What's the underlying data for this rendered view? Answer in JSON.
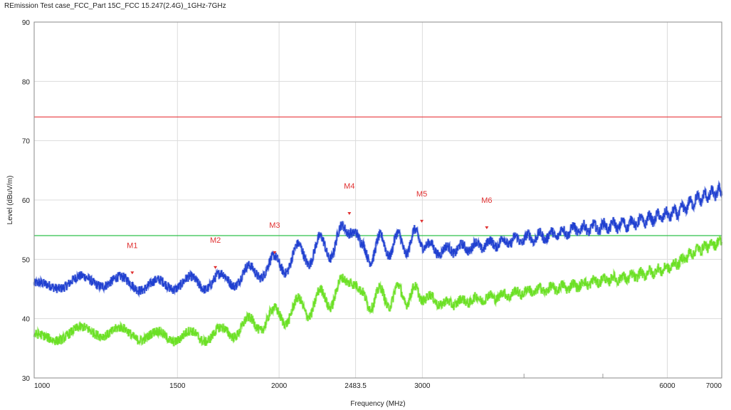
{
  "chart_data": {
    "type": "line",
    "title": "REmission Test case_FCC_Part 15C_FCC 15.247(2.4G)_1GHz-7GHz",
    "xlabel": "Frequency (MHz)",
    "ylabel": "Level (dBuV/m)",
    "xscale": "log",
    "xlim": [
      1000,
      7000
    ],
    "ylim": [
      30,
      90
    ],
    "x_ticks": [
      {
        "value": 1000,
        "label": "1000"
      },
      {
        "value": 1500,
        "label": "1500"
      },
      {
        "value": 2000,
        "label": "2000"
      },
      {
        "value": 2483.5,
        "label": "2483.5"
      },
      {
        "value": 3000,
        "label": "3000"
      },
      {
        "value": 6000,
        "label": "6000"
      },
      {
        "value": 7000,
        "label": "7000"
      }
    ],
    "x_minor_ticks": [
      4000,
      5000
    ],
    "y_ticks": [
      30,
      40,
      50,
      60,
      70,
      80,
      90
    ],
    "grid": true,
    "limit_lines": [
      {
        "value": 74,
        "color": "#e8393d"
      },
      {
        "value": 54,
        "color": "#2fc04a"
      }
    ],
    "series": [
      {
        "color": "#1f3fd0",
        "x": [
          1000,
          1050,
          1100,
          1200,
          1300,
          1400,
          1500,
          1600,
          1700,
          1800,
          1900,
          2000,
          2100,
          2200,
          2300,
          2400,
          2450,
          2483.5,
          2520,
          2600,
          2700,
          2800,
          2900,
          2990,
          3010,
          3100,
          3200,
          3400,
          3600,
          3800,
          4000,
          4300,
          4600,
          5000,
          5400,
          5800,
          6000,
          6200,
          6500,
          6800,
          7000
        ],
        "y": [
          45,
          46,
          46,
          46.5,
          46,
          45.5,
          46,
          46,
          46.5,
          47,
          48.5,
          49,
          50.5,
          51.5,
          52,
          54,
          56,
          55,
          51,
          51.5,
          52.5,
          52.5,
          53,
          53.5,
          53,
          51.5,
          51.5,
          52,
          52.5,
          53,
          53.5,
          54,
          55,
          55.5,
          56,
          57,
          57.5,
          58,
          60,
          61,
          61.5
        ],
        "amp": [
          0.9,
          0.9,
          1,
          1,
          1,
          1,
          1,
          1.2,
          1.2,
          1.4,
          1.6,
          1.8,
          2,
          2.2,
          2.2,
          2,
          1.5,
          1.2,
          1.8,
          2,
          2,
          2,
          2,
          1.6,
          1,
          0.8,
          0.7,
          0.7,
          0.7,
          0.7,
          0.7,
          0.7,
          0.7,
          0.7,
          0.7,
          0.7,
          0.7,
          0.7,
          0.7,
          0.7,
          0.7
        ]
      },
      {
        "color": "#6be024",
        "x": [
          1000,
          1050,
          1100,
          1200,
          1300,
          1400,
          1500,
          1600,
          1700,
          1800,
          1900,
          2000,
          2100,
          2200,
          2300,
          2400,
          2450,
          2483.5,
          2520,
          2600,
          2700,
          2800,
          2900,
          2990,
          3010,
          3100,
          3200,
          3400,
          3600,
          3800,
          4000,
          4300,
          4600,
          5000,
          5400,
          5800,
          6000,
          6200,
          6500,
          6800,
          7000
        ],
        "y": [
          36.5,
          37,
          37.5,
          38,
          37.5,
          37,
          37,
          37,
          37.5,
          38.5,
          39.5,
          40.5,
          41.5,
          42.5,
          43.5,
          45.5,
          47.5,
          46,
          43,
          43.5,
          43.5,
          44,
          44,
          44,
          44,
          43,
          42.5,
          43,
          43.5,
          44,
          44.5,
          45,
          45.5,
          46.5,
          47,
          48,
          48.5,
          49.5,
          51.5,
          52.5,
          53
        ],
        "amp": [
          0.8,
          0.9,
          0.9,
          0.9,
          0.9,
          0.9,
          0.9,
          1,
          1.1,
          1.3,
          1.5,
          1.7,
          1.9,
          2,
          2,
          1.6,
          1.3,
          1.1,
          1.6,
          1.8,
          1.8,
          1.8,
          1.6,
          1.3,
          0.9,
          0.6,
          0.5,
          0.5,
          0.5,
          0.5,
          0.5,
          0.5,
          0.5,
          0.5,
          0.5,
          0.5,
          0.5,
          0.5,
          0.5,
          0.5,
          0.5
        ]
      }
    ],
    "markers": [
      {
        "label": "M1",
        "x": 1320,
        "y": 47.6
      },
      {
        "label": "M2",
        "x": 1670,
        "y": 48.5
      },
      {
        "label": "M3",
        "x": 1975,
        "y": 51.0
      },
      {
        "label": "M4",
        "x": 2440,
        "y": 57.6
      },
      {
        "label": "M5",
        "x": 2995,
        "y": 56.3
      },
      {
        "label": "M6",
        "x": 3600,
        "y": 55.2
      }
    ]
  }
}
